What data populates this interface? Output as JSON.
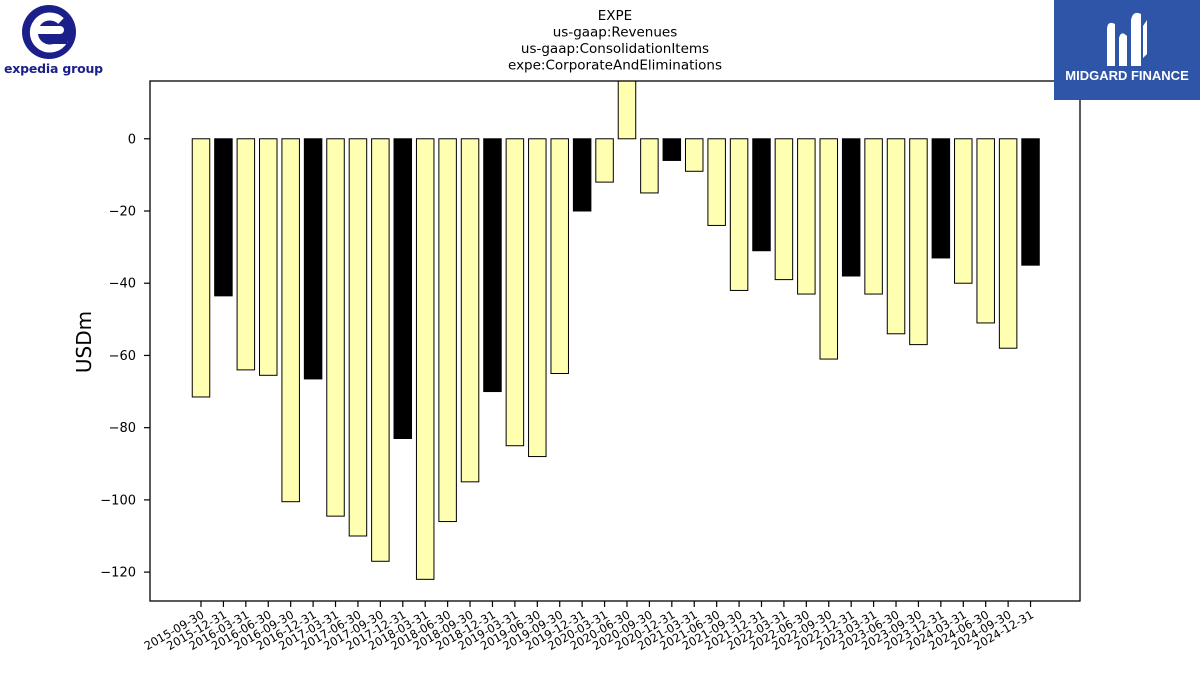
{
  "branding": {
    "left_logo_text": "expedia group",
    "right_logo_text": "MIDGARD FINANCE",
    "left_color": "#1b1f8a",
    "right_color": "#2f55a8"
  },
  "chart_data": {
    "type": "bar",
    "title_lines": [
      "EXPE",
      "us-gaap:Revenues",
      "us-gaap:ConsolidationItems",
      "expe:CorporateAndEliminations"
    ],
    "ylabel": "USDm",
    "xlabel": "",
    "ylim": [
      -128,
      16
    ],
    "yticks": [
      0,
      -20,
      -40,
      -60,
      -80,
      -100,
      -120
    ],
    "grid": false,
    "colors": {
      "quarter": "#ffffb2",
      "year_end": "#000000",
      "edge": "#000000"
    },
    "categories": [
      "2015-09-30",
      "2015-12-31",
      "2016-03-31",
      "2016-06-30",
      "2016-09-30",
      "2016-12-31",
      "2017-03-31",
      "2017-06-30",
      "2017-09-30",
      "2017-12-31",
      "2018-03-31",
      "2018-06-30",
      "2018-09-30",
      "2018-12-31",
      "2019-03-31",
      "2019-06-30",
      "2019-09-30",
      "2019-12-31",
      "2020-03-31",
      "2020-06-30",
      "2020-09-30",
      "2020-12-31",
      "2021-03-31",
      "2021-06-30",
      "2021-09-30",
      "2021-12-31",
      "2022-03-31",
      "2022-06-30",
      "2022-09-30",
      "2022-12-31",
      "2023-03-31",
      "2023-06-30",
      "2023-09-30",
      "2023-12-31",
      "2024-03-31",
      "2024-06-30",
      "2024-09-30",
      "2024-12-31"
    ],
    "values": [
      -71.5,
      -43.5,
      -64,
      -65.5,
      -100.5,
      -66.5,
      -104.5,
      -110,
      -117,
      -83,
      -122,
      -106,
      -95,
      -70,
      -85,
      -88,
      -65,
      -20,
      -12,
      16,
      -15,
      -6,
      -9,
      -24,
      -42,
      -31,
      -39,
      -43,
      -61,
      -38,
      -43,
      -54,
      -57,
      -33,
      -40,
      -51,
      -58,
      -35
    ]
  }
}
